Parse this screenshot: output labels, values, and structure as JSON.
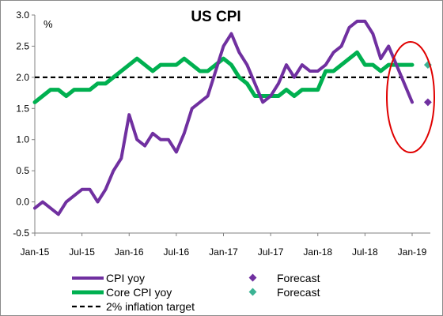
{
  "chart_data": {
    "type": "line",
    "title": "US CPI",
    "yunit_label": "%",
    "ylim": [
      -0.5,
      3.0
    ],
    "yticks": [
      "-0.5",
      "0.0",
      "0.5",
      "1.0",
      "1.5",
      "2.0",
      "2.5",
      "3.0"
    ],
    "xticks": [
      "Jan-15",
      "Jul-15",
      "Jan-16",
      "Jul-16",
      "Jan-17",
      "Jul-17",
      "Jan-18",
      "Jul-18",
      "Jan-19"
    ],
    "x_range_months": "Jan-15 to Jan-19",
    "grid": false,
    "legend_position": "bottom",
    "series": [
      {
        "name": "CPI yoy",
        "color": "#7030a0",
        "values": [
          -0.1,
          0.0,
          -0.1,
          -0.2,
          0.0,
          0.1,
          0.2,
          0.2,
          0.0,
          0.2,
          0.5,
          0.7,
          1.4,
          1.0,
          0.9,
          1.1,
          1.0,
          1.0,
          0.8,
          1.1,
          1.5,
          1.6,
          1.7,
          2.1,
          2.5,
          2.7,
          2.4,
          2.2,
          1.9,
          1.6,
          1.7,
          1.9,
          2.2,
          2.0,
          2.2,
          2.1,
          2.1,
          2.2,
          2.4,
          2.5,
          2.8,
          2.9,
          2.9,
          2.7,
          2.3,
          2.5,
          2.2,
          1.9,
          1.6
        ]
      },
      {
        "name": "Core CPI yoy",
        "color": "#00b050",
        "values": [
          1.6,
          1.7,
          1.8,
          1.8,
          1.7,
          1.8,
          1.8,
          1.8,
          1.9,
          1.9,
          2.0,
          2.1,
          2.2,
          2.3,
          2.2,
          2.1,
          2.2,
          2.2,
          2.2,
          2.3,
          2.2,
          2.1,
          2.1,
          2.2,
          2.3,
          2.2,
          2.0,
          1.9,
          1.7,
          1.7,
          1.7,
          1.7,
          1.8,
          1.7,
          1.8,
          1.8,
          1.8,
          2.1,
          2.1,
          2.2,
          2.3,
          2.4,
          2.2,
          2.2,
          2.1,
          2.2,
          2.2,
          2.2,
          2.2
        ]
      },
      {
        "name": "2% inflation target",
        "color": "#000000",
        "style": "dashed",
        "value": 2.0
      }
    ],
    "forecasts": [
      {
        "name": "Forecast",
        "series": "CPI yoy",
        "month_index": 50,
        "value": 1.6,
        "color": "#7030a0",
        "marker": "diamond"
      },
      {
        "name": "Forecast",
        "series": "Core CPI yoy",
        "month_index": 50,
        "value": 2.2,
        "color": "#3cb394",
        "marker": "diamond"
      }
    ],
    "annotation": {
      "type": "ellipse",
      "color": "#e00000",
      "highlights": "forecast region"
    }
  },
  "legend": {
    "cpi": "CPI yoy",
    "core": "Core CPI yoy",
    "target": "2% inflation target",
    "forecast1": "Forecast",
    "forecast2": "Forecast"
  }
}
